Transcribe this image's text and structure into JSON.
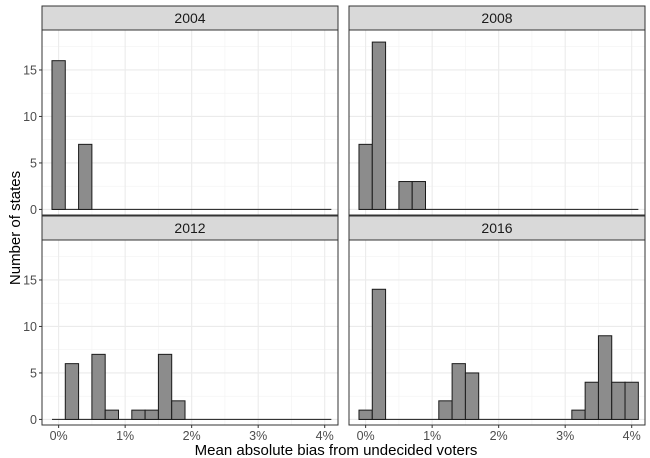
{
  "chart_data": {
    "type": "bar",
    "subtype": "faceted-histogram",
    "xlabel": "Mean absolute bias from undecided voters",
    "ylabel": "Number of states",
    "x_tick_labels": [
      "0%",
      "1%",
      "2%",
      "3%",
      "4%"
    ],
    "x_ticks": [
      0,
      1,
      2,
      3,
      4
    ],
    "y_tick_labels": [
      "0",
      "5",
      "10",
      "15"
    ],
    "y_ticks": [
      0,
      5,
      10,
      15
    ],
    "xlim": [
      -0.25,
      4.2
    ],
    "ylim": [
      -0.6,
      19.3
    ],
    "bin_width_pct": 0.2,
    "grid": true,
    "colors": {
      "bar_fill": "#8c8c8c",
      "bar_stroke": "#1a1a1a",
      "strip_fill": "#d9d9d9",
      "grid": "#ebebeb",
      "panel_border": "#333333"
    },
    "facets": [
      {
        "title": "2004",
        "bin_centers": [
          0.0,
          0.4
        ],
        "values": [
          16,
          7
        ],
        "baseline_end": 4.1
      },
      {
        "title": "2008",
        "bin_centers": [
          0.0,
          0.2,
          0.6,
          0.8
        ],
        "values": [
          7,
          18,
          3,
          3
        ],
        "baseline_end": 4.1
      },
      {
        "title": "2012",
        "bin_centers": [
          0.2,
          0.6,
          0.8,
          1.2,
          1.4,
          1.6,
          1.8
        ],
        "values": [
          6,
          7,
          1,
          1,
          1,
          7,
          2
        ],
        "baseline_end": 4.1
      },
      {
        "title": "2016",
        "bin_centers": [
          0.0,
          0.2,
          1.2,
          1.4,
          1.6,
          3.2,
          3.4,
          3.6,
          3.8,
          4.0
        ],
        "values": [
          1,
          14,
          2,
          6,
          5,
          1,
          4,
          9,
          4,
          4
        ],
        "baseline_end": 4.1
      }
    ]
  }
}
